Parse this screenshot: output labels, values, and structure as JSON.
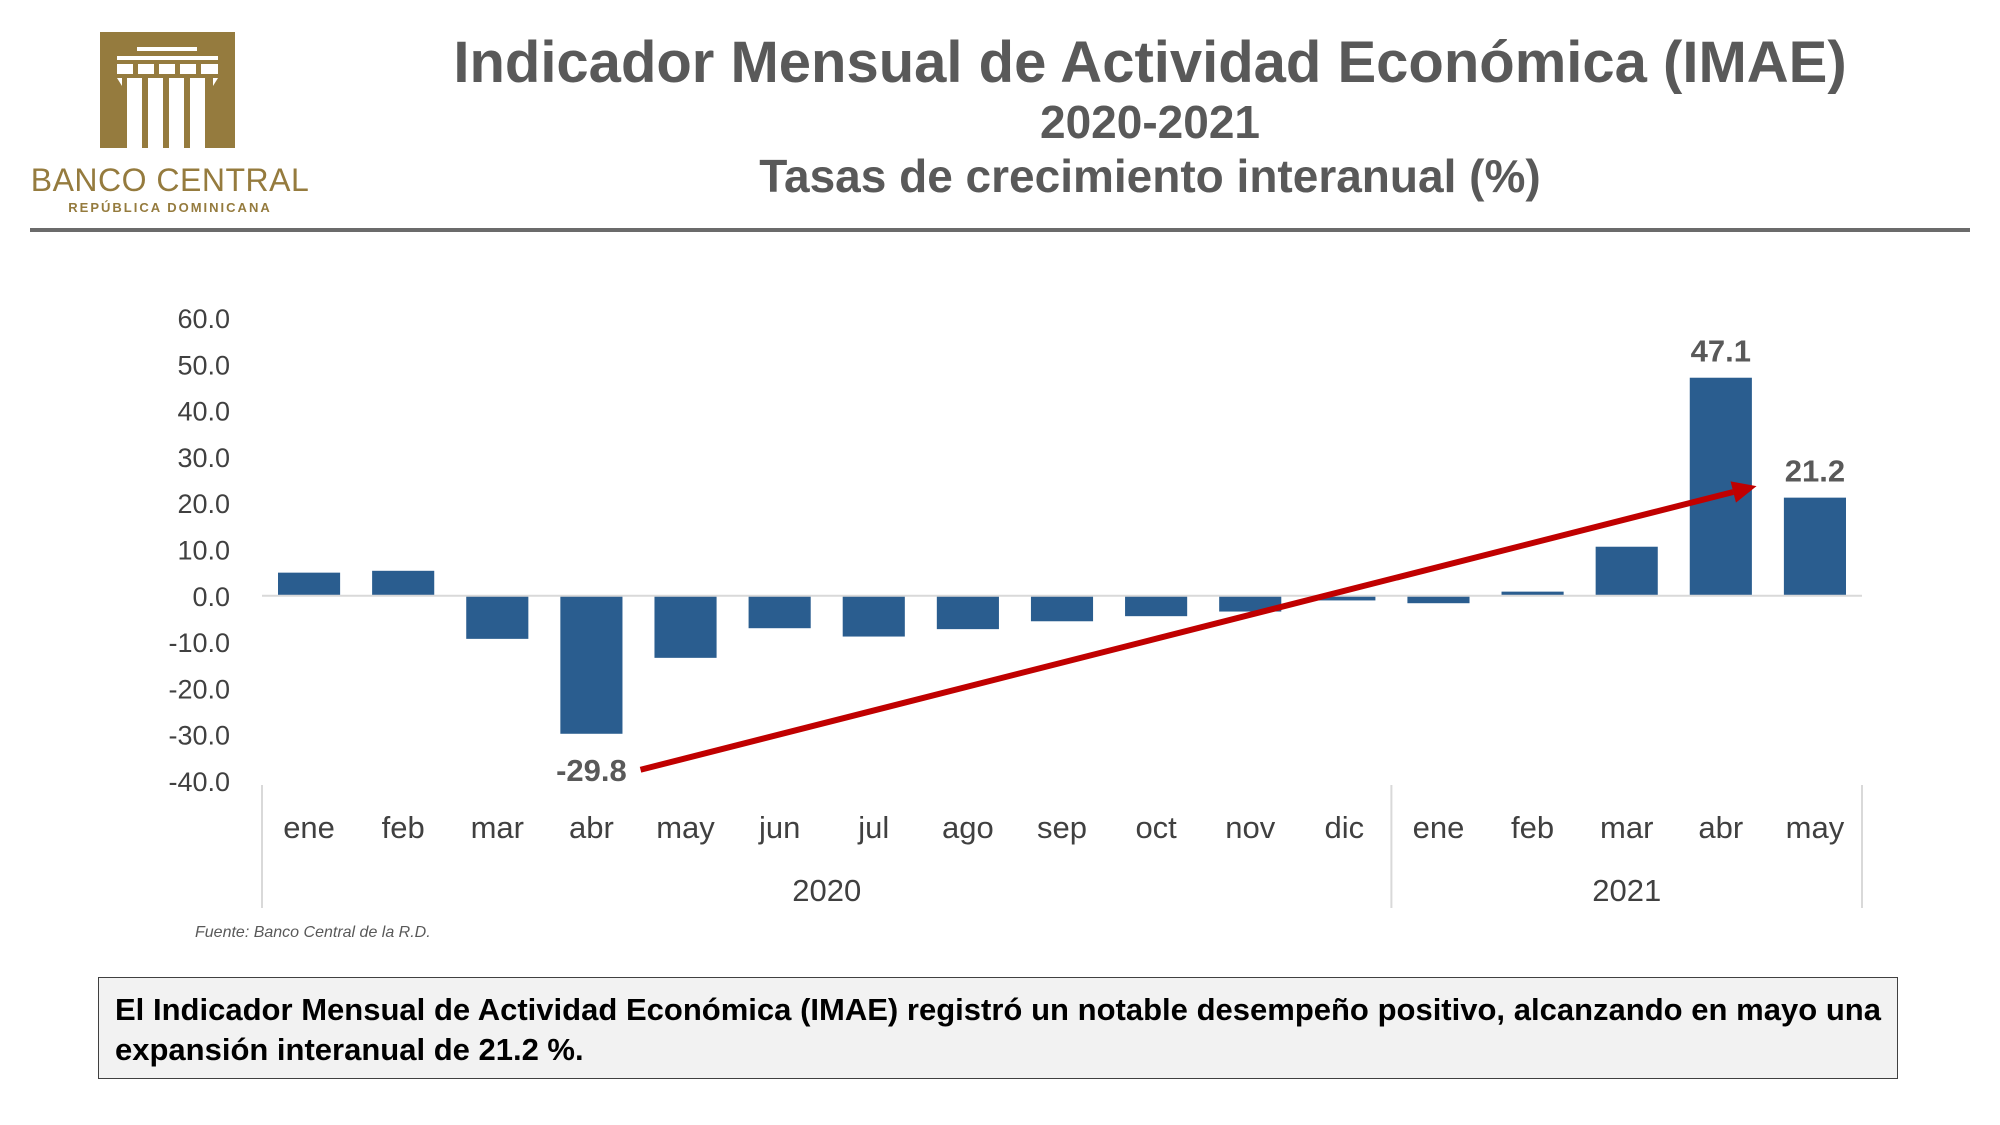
{
  "logo": {
    "name": "BANCO CENTRAL",
    "subtitle": "REPÚBLICA DOMINICANA",
    "color": "#957b3e"
  },
  "header": {
    "title": "Indicador Mensual de Actividad Económica (IMAE)",
    "period": "2020-2021",
    "subtitle": "Tasas de crecimiento interanual (%)"
  },
  "chart_data": {
    "type": "bar",
    "title": "Indicador Mensual de Actividad Económica (IMAE) 2020-2021 — Tasas de crecimiento interanual (%)",
    "xlabel": "",
    "ylabel": "",
    "ylim": [
      -40,
      60
    ],
    "yticks": [
      60,
      50,
      40,
      30,
      20,
      10,
      0,
      -10,
      -20,
      -30,
      -40
    ],
    "ytick_labels": [
      "60.0",
      "50.0",
      "40.0",
      "30.0",
      "20.0",
      "10.0",
      "0.0",
      "-10.0",
      "-20.0",
      "-30.0",
      "-40.0"
    ],
    "grid": false,
    "categories": [
      "ene",
      "feb",
      "mar",
      "abr",
      "may",
      "jun",
      "jul",
      "ago",
      "sep",
      "oct",
      "nov",
      "dic",
      "ene",
      "feb",
      "mar",
      "abr",
      "may"
    ],
    "groups": [
      {
        "label": "2020",
        "start": 0,
        "count": 12
      },
      {
        "label": "2021",
        "start": 12,
        "count": 5
      }
    ],
    "series": [
      {
        "name": "IMAE crecimiento interanual",
        "color": "#2a5d8f",
        "values": [
          5.0,
          5.4,
          -9.3,
          -29.8,
          -13.4,
          -7.0,
          -8.8,
          -7.2,
          -5.5,
          -4.4,
          -3.4,
          -1.0,
          -1.6,
          0.9,
          10.6,
          47.1,
          21.2
        ]
      }
    ],
    "data_labels": [
      {
        "index": 3,
        "text": "-29.8"
      },
      {
        "index": 15,
        "text": "47.1"
      },
      {
        "index": 16,
        "text": "21.2"
      }
    ],
    "annotation": {
      "type": "trend-arrow",
      "color": "#c00000",
      "from": {
        "category_index": 4.0,
        "value": -29.8
      },
      "to": {
        "category_index": 15.9,
        "value": 23.7
      }
    }
  },
  "source": "Fuente: Banco Central de la R.D.",
  "note": "El Indicador Mensual de Actividad Económica (IMAE) registró un notable desempeño positivo, alcanzando en mayo una expansión interanual de 21.2 %."
}
